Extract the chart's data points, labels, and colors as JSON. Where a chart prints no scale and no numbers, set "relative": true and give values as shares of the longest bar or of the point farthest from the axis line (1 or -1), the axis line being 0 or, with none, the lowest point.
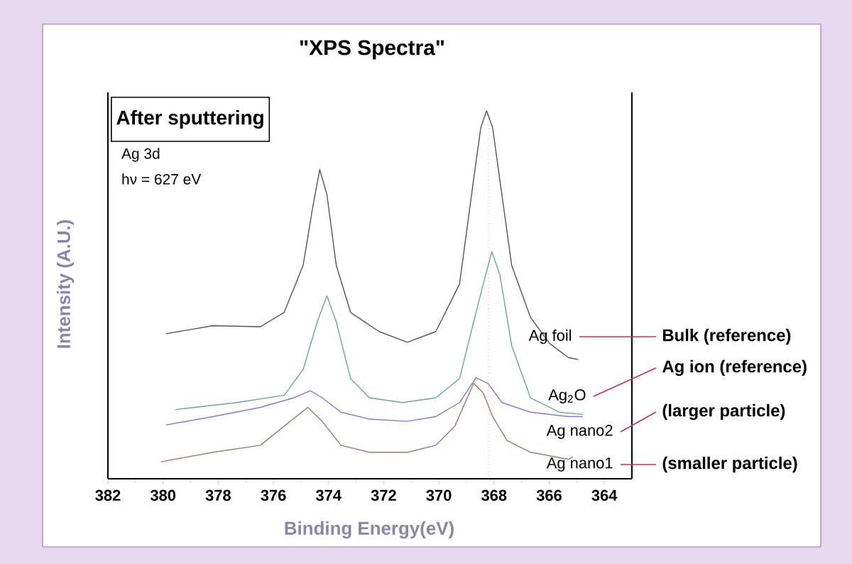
{
  "chart_data": {
    "type": "line",
    "title": "\"XPS Spectra\"",
    "xlabel": "Binding Energy(eV)",
    "ylabel": "Intensity (A.U.)",
    "relative": true,
    "xlim": [
      382,
      363
    ],
    "xticks": [
      382,
      380,
      378,
      376,
      374,
      372,
      370,
      368,
      366,
      364
    ],
    "annotations": [
      "After sputtering",
      "Ag 3d",
      "hν = 627 eV",
      "Bulk (reference)",
      "Ag ion (reference)",
      "(larger particle)",
      "(smaller particle)"
    ],
    "ref_lines": [
      {
        "axis": "x",
        "value": 368.2,
        "color": "#777777",
        "line_style": "dotted"
      }
    ],
    "series": [
      {
        "name": "Ag foil",
        "color": "#555555",
        "x": [
          379.9,
          378.19,
          376.47,
          375.61,
          374.92,
          374.58,
          374.32,
          374.06,
          373.72,
          373.2,
          372.17,
          371.14,
          370.11,
          369.25,
          368.74,
          368.48,
          368.27,
          368.05,
          367.79,
          367.36,
          366.68,
          365.99,
          365.3,
          364.94
        ],
        "values": [
          0.394,
          0.416,
          0.413,
          0.452,
          0.58,
          0.735,
          0.84,
          0.773,
          0.58,
          0.452,
          0.4,
          0.371,
          0.4,
          0.529,
          0.813,
          0.954,
          1.0,
          0.954,
          0.813,
          0.58,
          0.439,
          0.368,
          0.329,
          0.324
        ]
      },
      {
        "name": "Ag$_{2}$O",
        "color": "#6aaa84",
        "x": [
          379.56,
          377.32,
          375.61,
          374.92,
          374.41,
          374.06,
          373.72,
          373.2,
          372.52,
          371.31,
          370.11,
          369.25,
          368.74,
          368.39,
          368.08,
          367.79,
          367.36,
          366.68,
          365.64,
          364.78
        ],
        "values": [
          0.188,
          0.207,
          0.227,
          0.297,
          0.426,
          0.497,
          0.426,
          0.272,
          0.22,
          0.207,
          0.22,
          0.272,
          0.426,
          0.529,
          0.617,
          0.555,
          0.362,
          0.22,
          0.181,
          0.175
        ]
      },
      {
        "name": "Ag nano2",
        "color": "#7a80c8",
        "x": [
          379.9,
          378.19,
          376.47,
          375.26,
          374.66,
          374.23,
          373.55,
          372.52,
          371.14,
          370.11,
          369.25,
          368.65,
          368.22,
          367.71,
          366.68,
          365.3,
          364.78
        ],
        "values": [
          0.146,
          0.169,
          0.194,
          0.22,
          0.239,
          0.22,
          0.181,
          0.162,
          0.156,
          0.169,
          0.207,
          0.275,
          0.259,
          0.207,
          0.181,
          0.169,
          0.169
        ]
      },
      {
        "name": "Ag nano1",
        "color": "#a07a6a",
        "x": [
          380.08,
          378.19,
          376.47,
          375.61,
          374.75,
          374.23,
          373.55,
          372.52,
          371.14,
          370.11,
          369.42,
          368.74,
          368.39,
          368.05,
          367.53,
          366.68,
          365.3,
          365.14
        ],
        "values": [
          0.046,
          0.072,
          0.091,
          0.143,
          0.194,
          0.156,
          0.091,
          0.072,
          0.072,
          0.091,
          0.143,
          0.259,
          0.233,
          0.169,
          0.104,
          0.072,
          0.053,
          0.059
        ]
      }
    ]
  }
}
